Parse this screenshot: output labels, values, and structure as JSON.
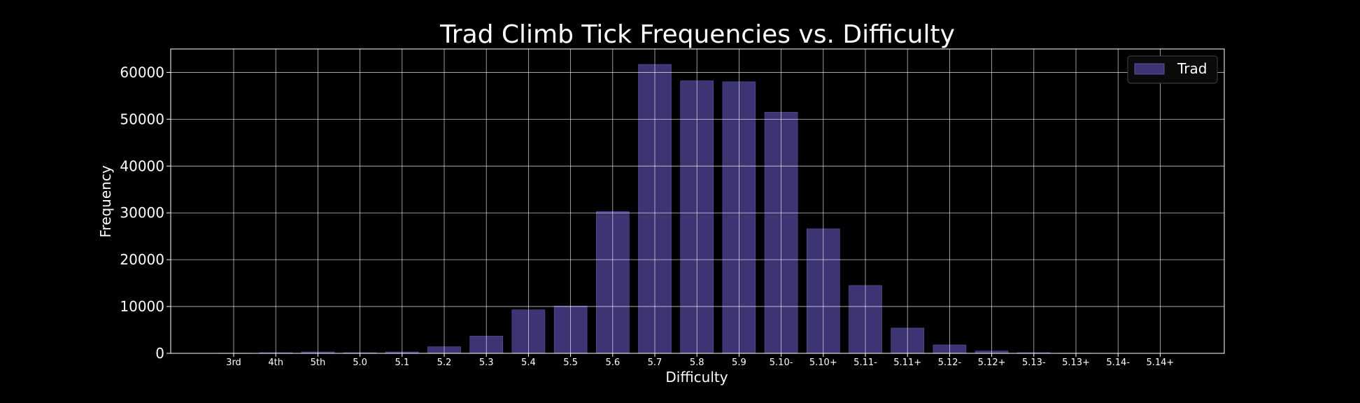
{
  "chart_data": {
    "type": "bar",
    "title": "Trad Climb Tick Frequencies vs. Difficulty",
    "xlabel": "Difficulty",
    "ylabel": "Frequency",
    "categories": [
      "3rd",
      "4th",
      "5th",
      "5.0",
      "5.1",
      "5.2",
      "5.3",
      "5.4",
      "5.5",
      "5.6",
      "5.7",
      "5.8",
      "5.9",
      "5.10-",
      "5.10+",
      "5.11-",
      "5.11+",
      "5.12-",
      "5.12+",
      "5.13-",
      "5.13+",
      "5.14-",
      "5.14+"
    ],
    "series": [
      {
        "name": "Trad",
        "values": [
          50,
          150,
          300,
          150,
          300,
          1400,
          3700,
          9300,
          10100,
          30300,
          61700,
          58200,
          58000,
          51500,
          26600,
          14500,
          5400,
          1800,
          500,
          150,
          50,
          30,
          20
        ]
      }
    ],
    "ylim": [
      0,
      65000
    ],
    "yticks": [
      0,
      10000,
      20000,
      30000,
      40000,
      50000,
      60000
    ],
    "grid": true,
    "legend_position": "top-right",
    "colors": {
      "background": "#000000",
      "bar": "#3d3573",
      "bar_edge": "#5a52a0",
      "grid": "#ffffff",
      "text": "#ffffff"
    }
  }
}
